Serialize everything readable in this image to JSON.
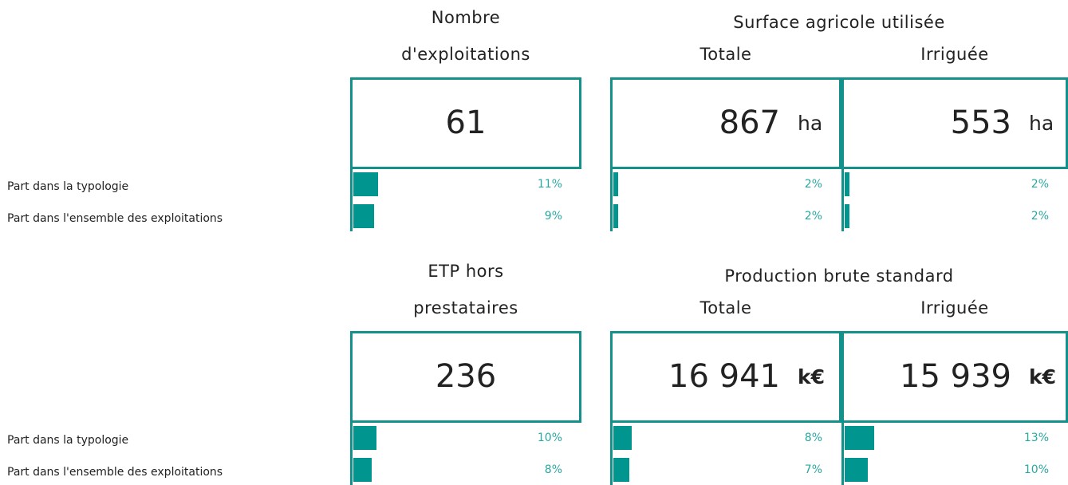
{
  "row_labels": [
    "Part dans la typologie",
    "Part dans l'ensemble des exploitations"
  ],
  "sections": [
    {
      "groups": [
        {
          "title": "Nombre d'exploitations",
          "cards": [
            {
              "value": "61",
              "shares": [
                11,
                9
              ],
              "share_labels": [
                "11%",
                "9%"
              ]
            }
          ]
        },
        {
          "title": "Surface agricole utilisée",
          "cards": [
            {
              "subtitle": "Totale",
              "value": "867",
              "unit": "ha",
              "shares": [
                2,
                2
              ],
              "share_labels": [
                "2%",
                "2%"
              ]
            },
            {
              "subtitle": "Irriguée",
              "value": "553",
              "unit": "ha",
              "shares": [
                2,
                2
              ],
              "share_labels": [
                "2%",
                "2%"
              ]
            }
          ]
        }
      ]
    },
    {
      "groups": [
        {
          "title": "ETP hors prestataires",
          "cards": [
            {
              "value": "236",
              "shares": [
                10,
                8
              ],
              "share_labels": [
                "10%",
                "8%"
              ]
            }
          ]
        },
        {
          "title": "Production brute standard",
          "cards": [
            {
              "subtitle": "Totale",
              "value": "16 941",
              "unit": "k€",
              "shares": [
                8,
                7
              ],
              "share_labels": [
                "8%",
                "7%"
              ]
            },
            {
              "subtitle": "Irriguée",
              "value": "15 939",
              "unit": "k€",
              "shares": [
                13,
                10
              ],
              "share_labels": [
                "13%",
                "10%"
              ]
            }
          ]
        }
      ]
    }
  ]
}
